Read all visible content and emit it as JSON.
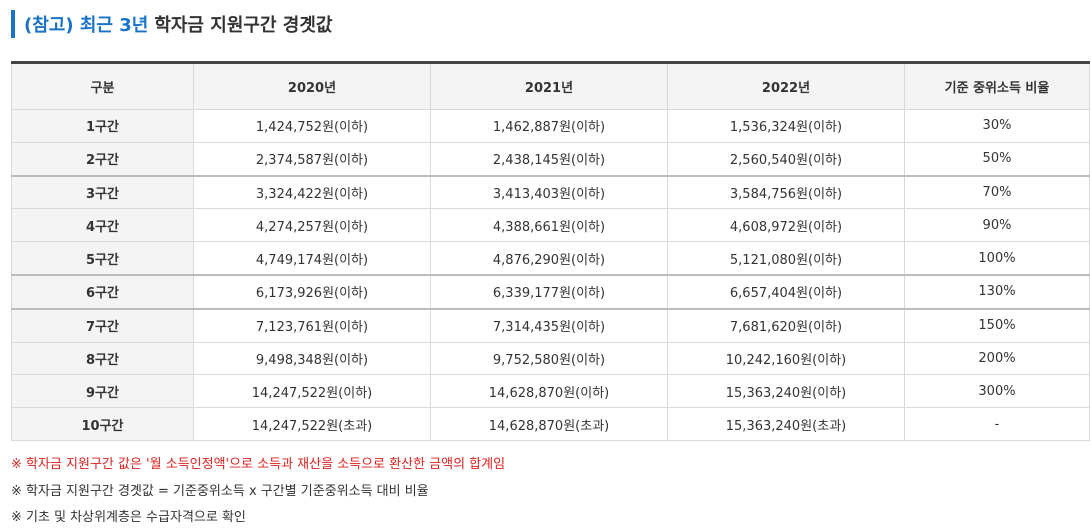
{
  "title": {
    "accent": "(참고) 최근 3년",
    "main": "학자금 지원구간 경곗값"
  },
  "table": {
    "headers": [
      "구분",
      "2020년",
      "2021년",
      "2022년",
      "기준 중위소득 비율"
    ],
    "rows": [
      [
        "1구간",
        "1,424,752원(이하)",
        "1,462,887원(이하)",
        "1,536,324원(이하)",
        "30%"
      ],
      [
        "2구간",
        "2,374,587원(이하)",
        "2,438,145원(이하)",
        "2,560,540원(이하)",
        "50%"
      ],
      [
        "3구간",
        "3,324,422원(이하)",
        "3,413,403원(이하)",
        "3,584,756원(이하)",
        "70%"
      ],
      [
        "4구간",
        "4,274,257원(이하)",
        "4,388,661원(이하)",
        "4,608,972원(이하)",
        "90%"
      ],
      [
        "5구간",
        "4,749,174원(이하)",
        "4,876,290원(이하)",
        "5,121,080원(이하)",
        "100%"
      ],
      [
        "6구간",
        "6,173,926원(이하)",
        "6,339,177원(이하)",
        "6,657,404원(이하)",
        "130%"
      ],
      [
        "7구간",
        "7,123,761원(이하)",
        "7,314,435원(이하)",
        "7,681,620원(이하)",
        "150%"
      ],
      [
        "8구간",
        "9,498,348원(이하)",
        "9,752,580원(이하)",
        "10,242,160원(이하)",
        "200%"
      ],
      [
        "9구간",
        "14,247,522원(이하)",
        "14,628,870원(이하)",
        "15,363,240원(이하)",
        "300%"
      ],
      [
        "10구간",
        "14,247,522원(초과)",
        "14,628,870원(초과)",
        "15,363,240원(초과)",
        "-"
      ]
    ]
  },
  "notes": [
    "※ 학자금 지원구간 값은 '월 소득인정액'으로 소득과 재산을 소득으로 환산한 금액의 합계임",
    "※ 학자금 지원구간 경곗값 = 기준중위소득 x 구간별 기준중위소득 대비 비율",
    "※ 기초 및 차상위계층은 수급자격으로 확인"
  ],
  "colors": {
    "accent": "#1a73c8",
    "note_red": "#d9221f"
  }
}
